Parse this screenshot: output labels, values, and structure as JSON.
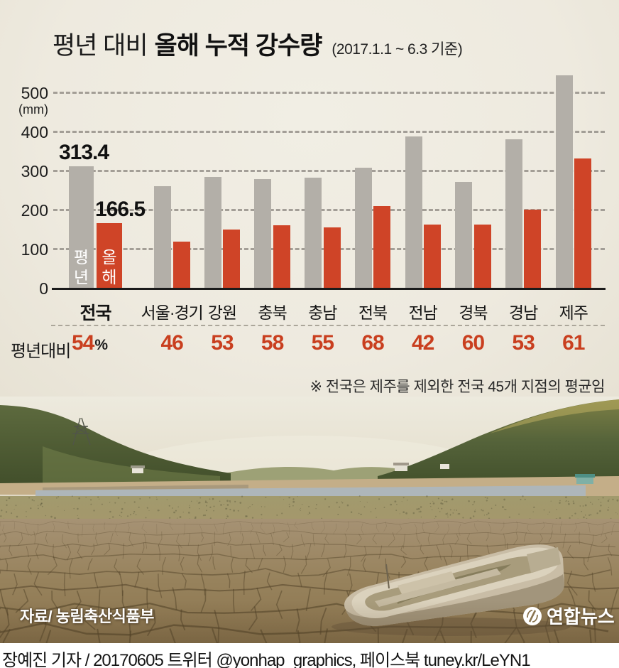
{
  "title": {
    "light": "평년 대비",
    "bold": "올해 누적 강수량",
    "period": "(2017.1.1 ~ 6.3 기준)"
  },
  "chart_data": {
    "type": "bar",
    "title": "평년 대비 올해 누적 강수량 (2017.1.1 ~ 6.3 기준)",
    "ylabel": "(mm)",
    "y_ticks": [
      0,
      100,
      200,
      300,
      400,
      500
    ],
    "ylim": [
      0,
      560
    ],
    "grid": "dashed horizontal",
    "categories": [
      "전국",
      "서울·경기",
      "강원",
      "충북",
      "충남",
      "전북",
      "전남",
      "경북",
      "경남",
      "제주"
    ],
    "series": [
      {
        "name": "평년",
        "color": "#b3afa8",
        "values": [
          313.4,
          262,
          285,
          280,
          283,
          310,
          389,
          272,
          382,
          545
        ]
      },
      {
        "name": "올해",
        "color": "#cf4427",
        "values": [
          166.5,
          120,
          151,
          162,
          156,
          211,
          163,
          163,
          202,
          333
        ]
      }
    ],
    "bar_value_labels": [
      "313.4",
      "166.5"
    ],
    "legend_in_bar": [
      "평년",
      "올해"
    ],
    "percent_row": {
      "label": "평년대비",
      "unit": "%",
      "values": [
        "54",
        "46",
        "53",
        "58",
        "55",
        "68",
        "42",
        "60",
        "53",
        "61"
      ]
    },
    "note": "※ 전국은 제주를 제외한 전국 45개 지점의 평균임"
  },
  "photo": {
    "source_label": "자료/ 농림축산식품부",
    "logo_text": "연합뉴스",
    "description": "가뭄으로 바닥이 갈라진 저수지와 방치된 나룻배"
  },
  "caption": "장예진 기자 / 20170605 트위터 @yonhap_graphics, 페이스북 tuney.kr/LeYN1",
  "colors": {
    "background": "#eeeadf",
    "bar_normal": "#b3afa8",
    "bar_this_year": "#cf4427",
    "percent_red": "#c93f1f",
    "text": "#1c1c1c"
  }
}
